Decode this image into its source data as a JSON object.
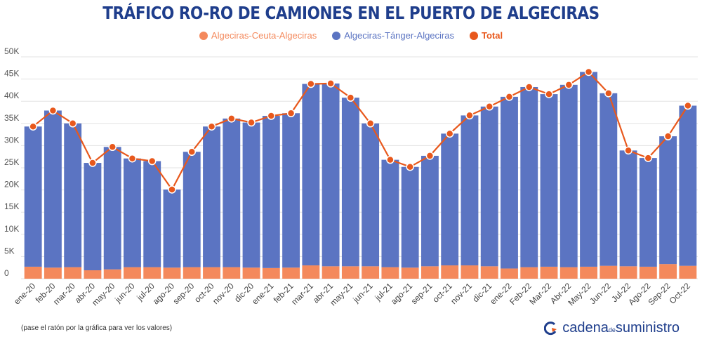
{
  "page": {
    "title": "TRÁFICO RO-RO DE CAMIONES EN EL PUERTO DE ALGECIRAS",
    "note": "(pase el ratón por la gráfica para ver los valores)",
    "logo": {
      "part1": "cadena",
      "part2": "de",
      "part3": "suministro"
    }
  },
  "colors": {
    "ceuta": "#f4895c",
    "tanger": "#5b74c2",
    "total": "#e8581c",
    "title": "#1f3e8c",
    "grid": "#e3e3e3"
  },
  "chart_data": {
    "type": "bar",
    "stacked": true,
    "title": "TRÁFICO RO-RO DE CAMIONES EN EL PUERTO DE ALGECIRAS",
    "xlabel": "",
    "ylabel": "",
    "ylim": [
      0,
      50000
    ],
    "yticks": [
      "0",
      "5K",
      "10K",
      "15K",
      "20K",
      "25K",
      "30K",
      "35K",
      "40K",
      "45K",
      "50K"
    ],
    "legend_position": "top-center",
    "categories": [
      "ene-20",
      "feb-20",
      "mar-20",
      "abr-20",
      "may-20",
      "jun-20",
      "jul-20",
      "ago-20",
      "sep-20",
      "oct-20",
      "nov-20",
      "dic-20",
      "ene-21",
      "feb-21",
      "mar-21",
      "abr-21",
      "may-21",
      "jun-21",
      "jul-21",
      "ago-21",
      "sep-21",
      "oct-21",
      "nov-21",
      "dic-21",
      "ene-22",
      "Feb-22",
      "Mar-22",
      "Abr-22",
      "May-22",
      "Jun-22",
      "Jul-22",
      "Ago-22",
      "Sep-22",
      "Oct-22"
    ],
    "series": [
      {
        "name": "Algeciras-Ceuta-Algeciras",
        "type": "bar",
        "values": [
          2700,
          2500,
          2600,
          1900,
          2100,
          2600,
          2600,
          2500,
          2600,
          2600,
          2600,
          2500,
          2400,
          2500,
          3000,
          2800,
          2800,
          2800,
          2600,
          2500,
          2800,
          3000,
          3000,
          2800,
          2300,
          2600,
          2700,
          2600,
          2700,
          2900,
          2800,
          2700,
          3300,
          2900
        ]
      },
      {
        "name": "Algeciras-Tánger-Algeciras",
        "type": "bar",
        "values": [
          31600,
          35400,
          32400,
          24200,
          27600,
          24500,
          23900,
          17600,
          26000,
          31700,
          33500,
          32700,
          34300,
          34800,
          40900,
          41200,
          38000,
          32200,
          24200,
          22700,
          24900,
          29700,
          33800,
          36000,
          38700,
          40600,
          38900,
          41100,
          43900,
          38900,
          26100,
          24500,
          28800,
          36100
        ]
      },
      {
        "name": "Total",
        "type": "line",
        "values": [
          34300,
          37900,
          35000,
          26100,
          29700,
          27100,
          26500,
          20100,
          28600,
          34300,
          36100,
          35200,
          36700,
          37300,
          43900,
          44000,
          40800,
          35000,
          26800,
          25200,
          27700,
          32700,
          36800,
          38800,
          41000,
          43200,
          41600,
          43700,
          46600,
          41800,
          28900,
          27200,
          32100,
          39000
        ]
      }
    ]
  }
}
